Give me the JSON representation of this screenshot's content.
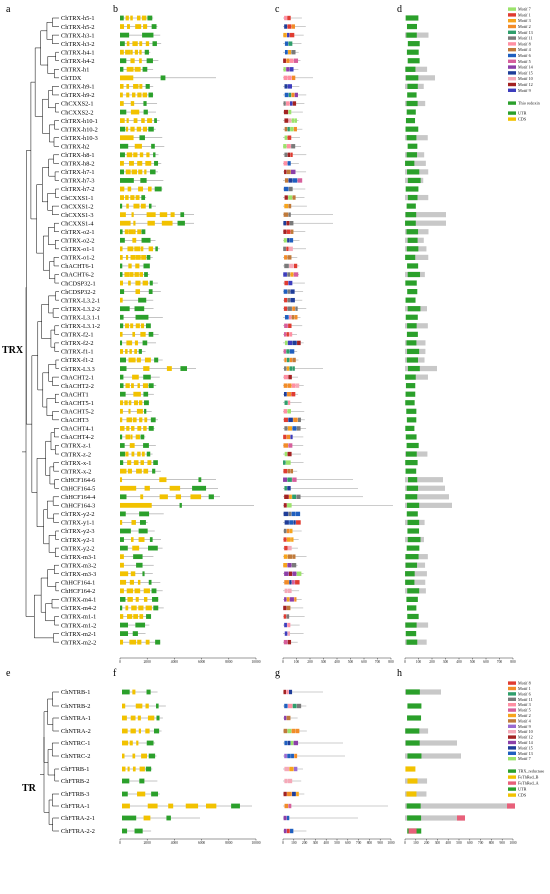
{
  "panels": [
    "a",
    "b",
    "c",
    "d",
    "e",
    "f",
    "g",
    "h"
  ],
  "groups": {
    "trx": "TRX",
    "tr": "TR"
  },
  "genes_trx": [
    "ChTRX-h5-1",
    "ChTRX-h5-2",
    "ChTRX-h3-1",
    "ChTRX-h3-2",
    "ChTRX-h4-1",
    "ChTRX-h4-2",
    "ChTRX-h1",
    "ChTDX",
    "ChTRX-h9-1",
    "ChTRX-h9-2",
    "ChCXXS2-1",
    "ChCXXS2-2",
    "ChTRX-h10-1",
    "ChTRX-h10-2",
    "ChTRX-h10-3",
    "ChTRX-h2",
    "ChTRX-h8-1",
    "ChTRX-h8-2",
    "ChTRX-h7-1",
    "ChTRX-h7-3",
    "ChTRX-h7-2",
    "ChCXXS1-1",
    "ChCXXS1-2",
    "ChCXXS1-3",
    "ChCXXS1-4",
    "ChTRX-o2-1",
    "ChTRX-o2-2",
    "ChTRX-o1-1",
    "ChTRX-o1-2",
    "ChACHT6-1",
    "ChACHT6-2",
    "ChCDSP32-1",
    "ChCDSP32-2",
    "ChTRX-L3.2-1",
    "ChTRX-L3.2-2",
    "ChTRX-L3.1-1",
    "ChTRX-L3.1-2",
    "ChTRX-f2-1",
    "ChTRX-f2-2",
    "ChTRX-f1-1",
    "ChTRX-f1-2",
    "ChTRX-L3.3",
    "ChACHT2-1",
    "ChACHT2-2",
    "ChACHT1",
    "ChACHT5-1",
    "ChACHT5-2",
    "ChACHT3",
    "ChACHT4-1",
    "ChACHT4-2",
    "ChTRX-z-1",
    "ChTRX-z-2",
    "ChTRX-x-1",
    "ChTRX-x-2",
    "ChHCF164-6",
    "ChHCF164-5",
    "ChHCF164-4",
    "ChHCF164-3",
    "ChTRX-y2-2",
    "ChTRX-y1-1",
    "ChTRX-y2-3",
    "ChTRX-y2-1",
    "ChTRX-y2-2",
    "ChTRX-m3-1",
    "ChTRX-m3-2",
    "ChTRX-m3-3",
    "ChHCF164-1",
    "ChHCF164-2",
    "ChTRX-m4-1",
    "ChTRX-m4-2",
    "ChTRX-m1-1",
    "ChTRX-m1-2",
    "ChTRX-m2-1",
    "ChTRX-m2-2"
  ],
  "genes_tr": [
    "ChNTRB-1",
    "ChNTRB-2",
    "ChNTRA-1",
    "ChNTRA-2",
    "ChNTRC-1",
    "ChNTRC-2",
    "ChFTRB-1",
    "ChFTRB-2",
    "ChFTRB-3",
    "ChFTRA-1",
    "ChFTRA-2-1",
    "ChFTRA-2-2"
  ],
  "axis_b": [
    "0",
    "2000",
    "4000",
    "6000",
    "8000",
    "10000"
  ],
  "axis_c": [
    "0",
    "100",
    "200",
    "300",
    "400",
    "500",
    "600",
    "700",
    "800"
  ],
  "axis_d": [
    "0",
    "100",
    "200",
    "300",
    "400",
    "500",
    "600",
    "700",
    "800"
  ],
  "axis_f": [
    "0",
    "2000",
    "4000",
    "6000",
    "8000",
    "10000"
  ],
  "axis_g": [
    "0",
    "100",
    "200",
    "300",
    "400",
    "500",
    "600",
    "700",
    "800",
    "900",
    "1000"
  ],
  "axis_h": [
    "0",
    "100",
    "200",
    "300",
    "400",
    "500",
    "600",
    "700",
    "800",
    "900",
    "1000"
  ],
  "legend_c": {
    "motifs": [
      "Motif 7",
      "Motif 1",
      "Motif 3",
      "Motif 2",
      "Motif 13",
      "Motif 11",
      "Motif 8",
      "Motif 4",
      "Motif 6",
      "Motif 5",
      "Motif 14",
      "Motif 15",
      "Motif 10",
      "Motif 12",
      "Motif 9"
    ],
    "colors": [
      "#9be36b",
      "#e03c31",
      "#f7a41d",
      "#f28c28",
      "#2f9e6b",
      "#7a7a7a",
      "#ff8fa3",
      "#c07a3a",
      "#1f5fbf",
      "#d65f9c",
      "#8c3fa8",
      "#1f3d99",
      "#f5a9b8",
      "#a32222",
      "#3d3dbd"
    ]
  },
  "legend_d": {
    "items": [
      "Thio redoxin",
      "UTR",
      "CDS"
    ],
    "colors": [
      "#2ba02b",
      "#2ba02b",
      "#f2c200"
    ]
  },
  "legend_g": {
    "motifs": [
      "Motif 8",
      "Motif 1",
      "Motif 6",
      "Motif 11",
      "Motif 3",
      "Motif 5",
      "Motif 2",
      "Motif 4",
      "Motif 9",
      "Motif 10",
      "Motif 12",
      "Motif 14",
      "Motif 15",
      "Motif 13",
      "Motif 7"
    ],
    "colors": [
      "#e03c31",
      "#f28c28",
      "#2f9e6b",
      "#7a7a7a",
      "#ff8fa3",
      "#d65f9c",
      "#f7a41d",
      "#c07a3a",
      "#9a6bd1",
      "#f5a9b8",
      "#a32222",
      "#8c3fa8",
      "#1f3d99",
      "#1f5fbf",
      "#9be36b"
    ]
  },
  "legend_h": {
    "items": [
      "TRX_reductase",
      "FeThRed_B",
      "FeThRed_A",
      "UTR",
      "CDS"
    ],
    "colors": [
      "#2ba02b",
      "#f2c200",
      "#e8607a",
      "#2ba02b",
      "#f2c200"
    ]
  },
  "colors": {
    "exon": "#f2c200",
    "utr": "#2ba02b",
    "intron": "#888888",
    "grey_box": "#c8c8c8",
    "fer_a": "#e8607a"
  }
}
